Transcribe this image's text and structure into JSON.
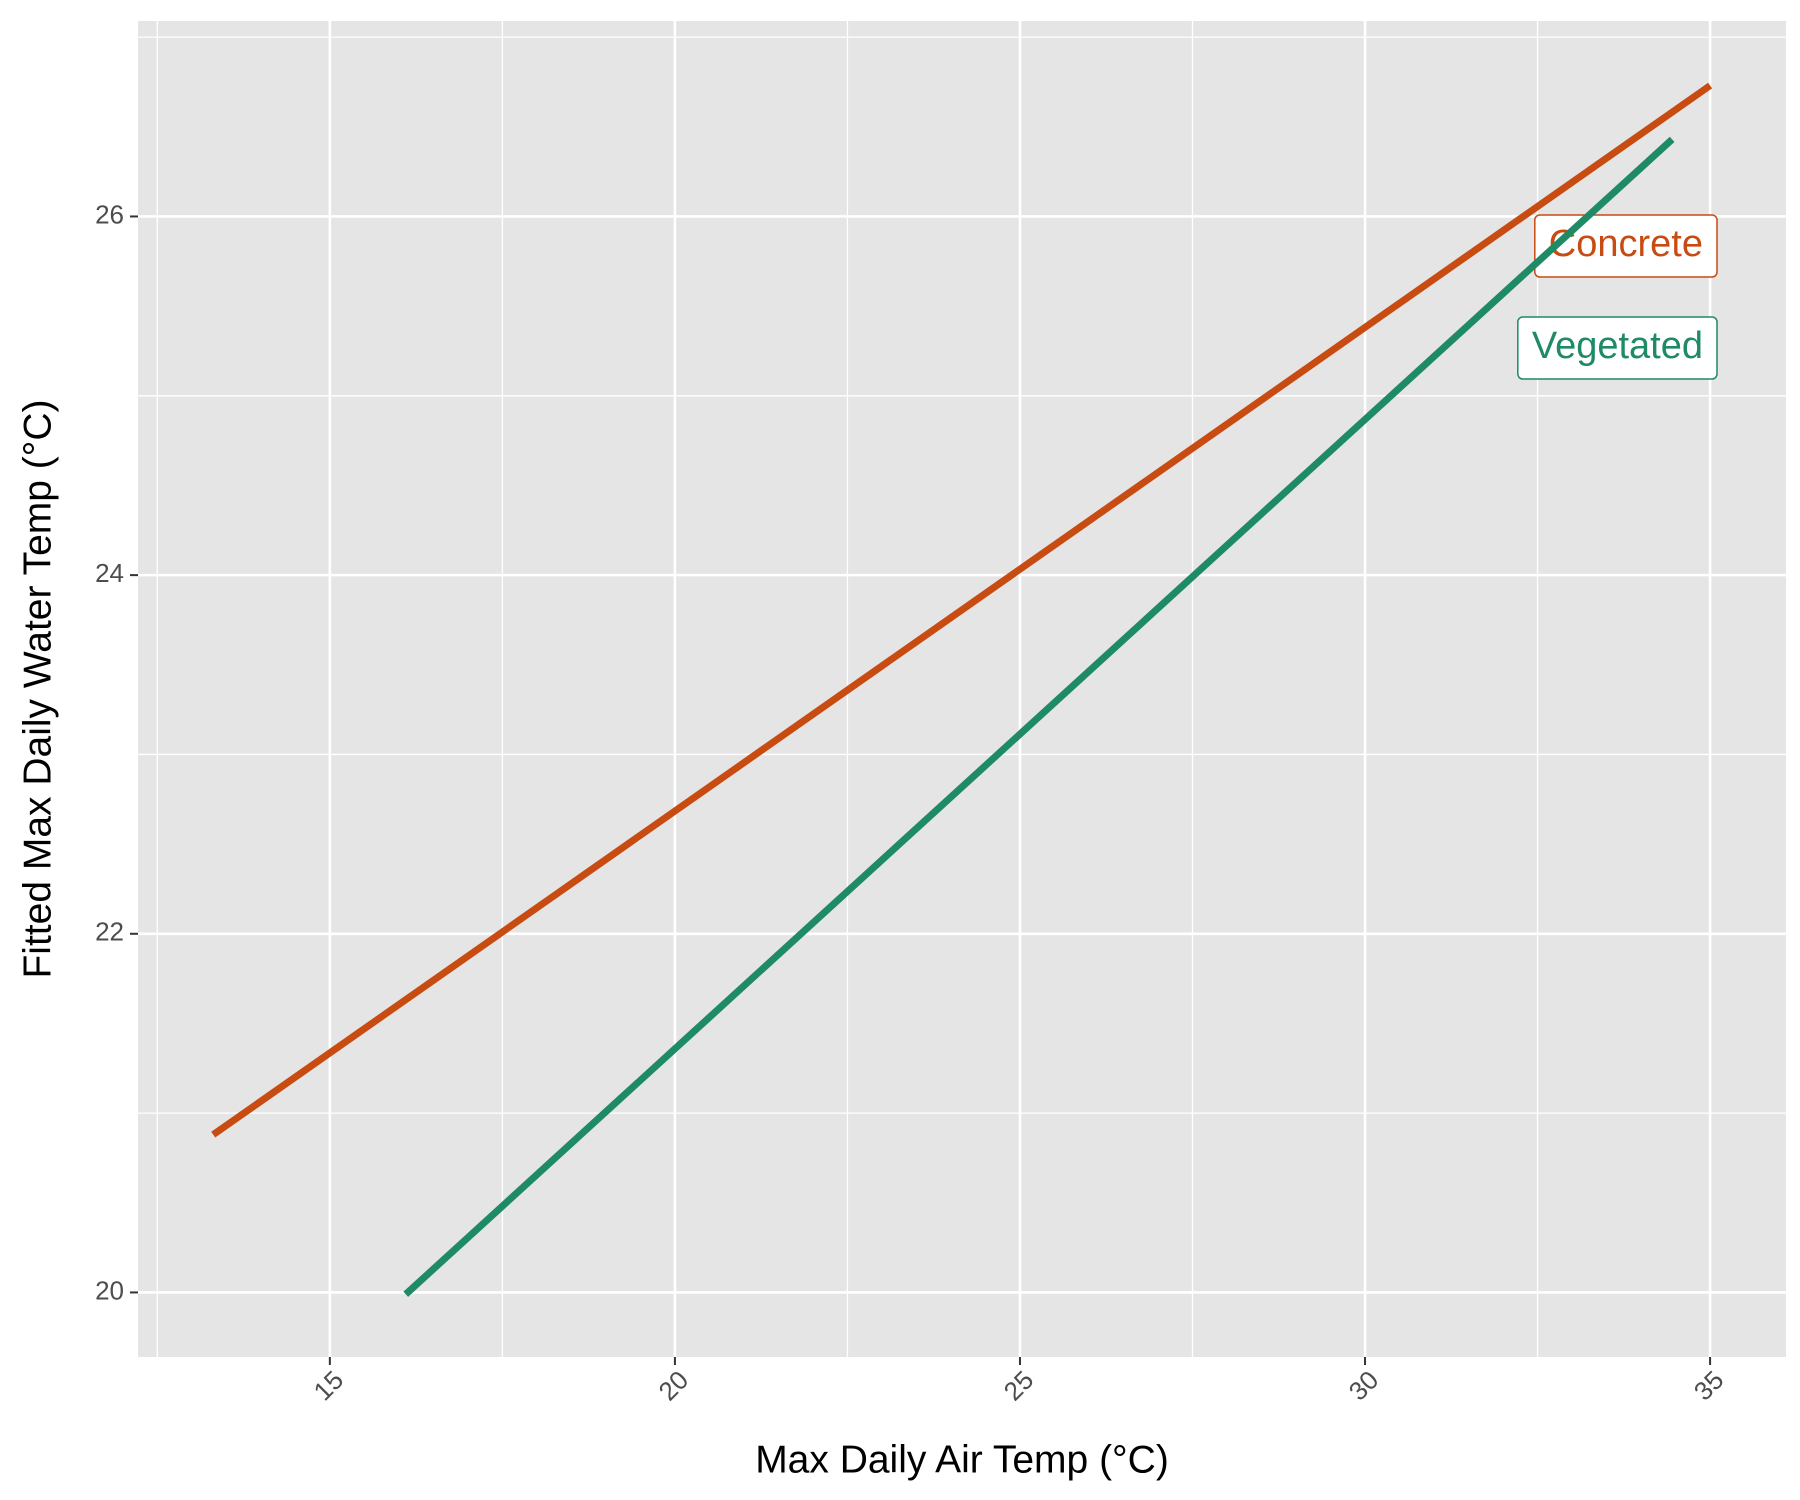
{
  "chart_data": {
    "type": "line",
    "x_label": "Max Daily Air Temp (°C)",
    "y_label": "Fitted Max Daily Water Temp (°C)",
    "series": [
      {
        "name": "Concrete",
        "color": "#c84b11",
        "x": [
          13.31,
          35.0
        ],
        "values": [
          20.88,
          26.73
        ]
      },
      {
        "name": "Vegetated",
        "color": "#1f8a66",
        "x": [
          16.1,
          34.45
        ],
        "values": [
          19.99,
          26.43
        ]
      }
    ],
    "xlim": [
      12.22,
      36.1
    ],
    "xticks": [
      15,
      20,
      25,
      30,
      35
    ],
    "ylim": [
      19.64,
      27.09
    ],
    "yticks": [
      20,
      22,
      24,
      26
    ],
    "grid": true,
    "background": "#e5e5e5"
  }
}
